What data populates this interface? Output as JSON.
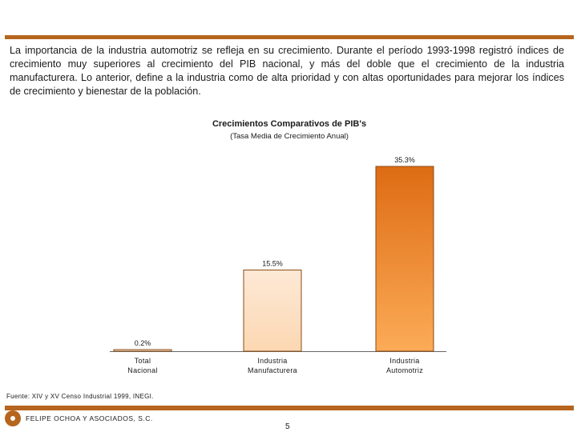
{
  "intro_text": "La importancia de la industria automotriz se refleja en su crecimiento. Durante el período 1993-1998 registró índices de crecimiento muy superiores al crecimiento del PIB nacional, y más del doble que el crecimiento de la industria manufacturera. Lo anterior, define a la industria como de alta prioridad y con altas oportunidades para mejorar los índices de crecimiento y bienestar de la población.",
  "chart_data": {
    "type": "bar",
    "title": "Crecimientos Comparativos de PIB's",
    "subtitle": "(Tasa Media de Crecimiento Anual)",
    "categories": [
      [
        "Total",
        "Nacional"
      ],
      [
        "Industria",
        "Manufacturera"
      ],
      [
        "Industria",
        "Automotriz"
      ]
    ],
    "values": [
      0.2,
      15.5,
      35.3
    ],
    "value_labels": [
      "0.2%",
      "15.5%",
      "35.3%"
    ],
    "unit": "%",
    "xlabel": "",
    "ylabel": "",
    "ylim": [
      0,
      35.3
    ],
    "colors": {
      "bar_top_1": "#fffaf0",
      "bar_bottom_1": "#f6d2b0",
      "bar_top_2": "#fde9d6",
      "bar_bottom_2": "#fcd7b2",
      "bar_top_3": "#dd6c14",
      "bar_bottom_3": "#fcab57",
      "bar_stroke": "#8a4a14"
    }
  },
  "footer": {
    "source": "Fuente: XIV y XV Censo Industrial 1999, INEGI.",
    "company": "FELIPE OCHOA Y ASOCIADOS, S.C.",
    "page_number": "5",
    "accent_color": "#b5651d"
  }
}
